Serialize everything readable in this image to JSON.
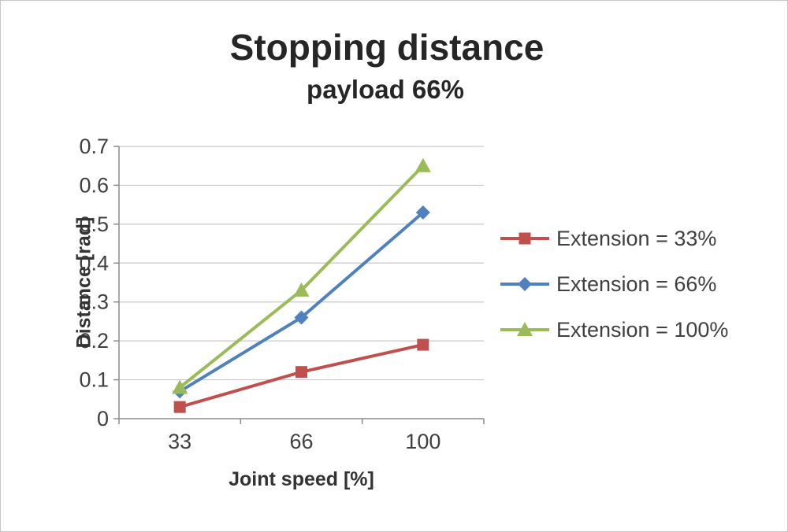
{
  "title": "Stopping distance",
  "subtitle": "payload 66%",
  "chart_data": {
    "type": "line",
    "title": "Stopping distance",
    "subtitle": "payload 66%",
    "xlabel": "Joint speed [%]",
    "ylabel": "Distance [rad]",
    "categories": [
      "33",
      "66",
      "100"
    ],
    "x": [
      33,
      66,
      100
    ],
    "series": [
      {
        "name": "Extension = 33%",
        "values": [
          0.03,
          0.12,
          0.19
        ],
        "color": "#C0504D",
        "marker": "square"
      },
      {
        "name": "Extension = 66%",
        "values": [
          0.07,
          0.26,
          0.53
        ],
        "color": "#4F81BD",
        "marker": "diamond"
      },
      {
        "name": "Extension = 100%",
        "values": [
          0.08,
          0.33,
          0.65
        ],
        "color": "#9BBB59",
        "marker": "triangle"
      }
    ],
    "ylim": [
      0,
      0.7
    ],
    "ytick_step": 0.1,
    "ytick_labels": [
      "0",
      "0.1",
      "0.2",
      "0.3",
      "0.4",
      "0.5",
      "0.6",
      "0.7"
    ],
    "grid": true,
    "legend_position": "right"
  },
  "colors": {
    "grid": "#C9C9C9",
    "axis": "#8C8C8C",
    "text": "#404040",
    "title_text": "#262626",
    "background": "#FFFFFF",
    "border": "#C6C6C6"
  }
}
